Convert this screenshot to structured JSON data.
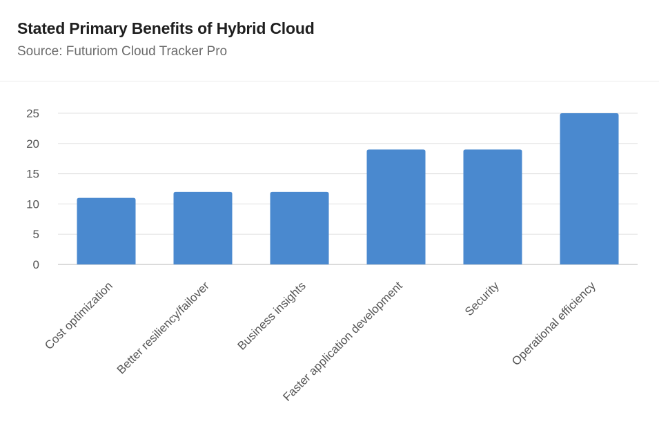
{
  "header": {
    "title": "Stated Primary Benefits of Hybrid Cloud",
    "subtitle": "Source: Futuriom Cloud Tracker Pro"
  },
  "colors": {
    "bar": "#4a89cf",
    "grid": "#e0e0e0",
    "axis": "#cfcfcf",
    "tick_text": "#555555"
  },
  "chart_data": {
    "type": "bar",
    "title": "Stated Primary Benefits of Hybrid Cloud",
    "subtitle": "Source: Futuriom Cloud Tracker Pro",
    "categories": [
      "Cost optimization",
      "Better resiliency/failover",
      "Business insights",
      "Faster application development",
      "Security",
      "Operational efficiency"
    ],
    "values": [
      11,
      12,
      12,
      19,
      19,
      25
    ],
    "yticks": [
      0,
      5,
      10,
      15,
      20,
      25
    ],
    "ylim": [
      0,
      25
    ],
    "xlabel": "",
    "ylabel": "",
    "grid": true,
    "legend": "none"
  }
}
